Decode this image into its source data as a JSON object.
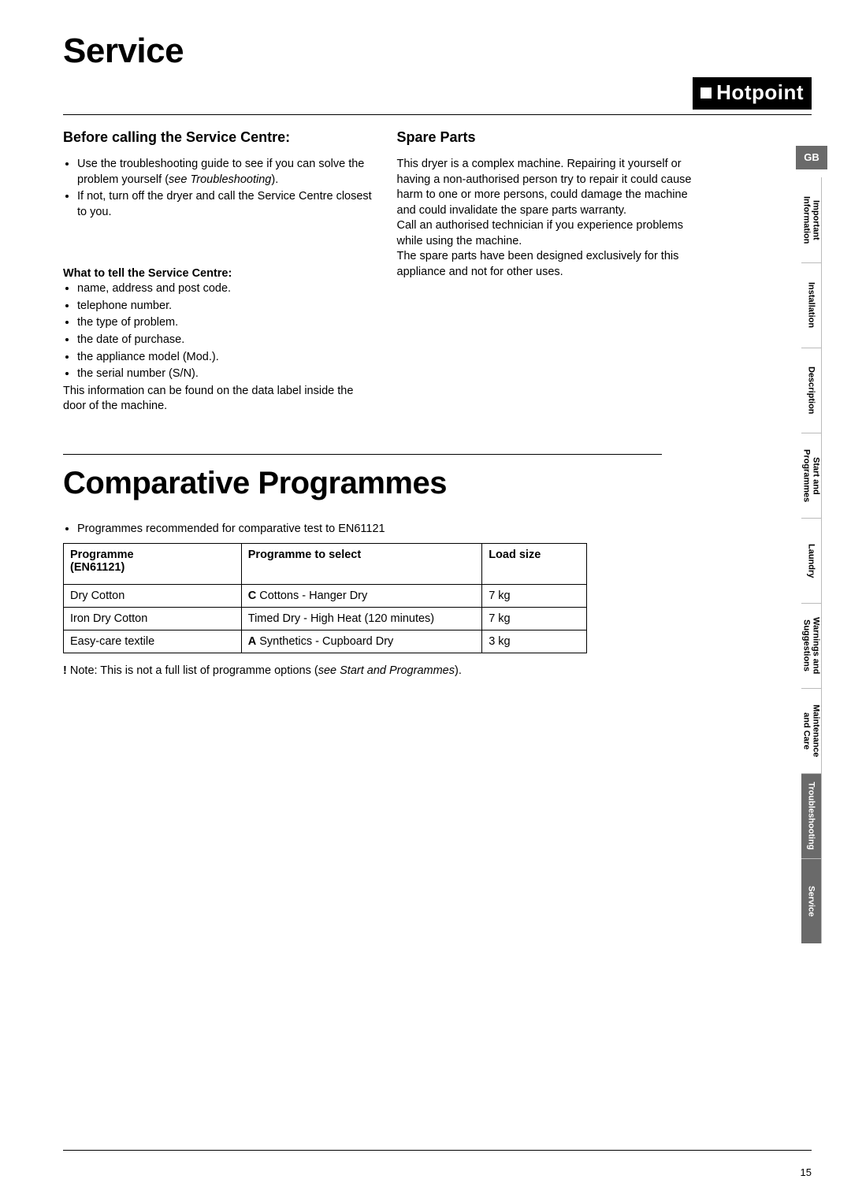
{
  "page": {
    "title_main": "Service",
    "brand": "Hotpoint",
    "title_secondary": "Comparative Programmes",
    "page_number": "15"
  },
  "tabs": {
    "gb": "GB",
    "items": [
      "Important\nInformation",
      "Installation",
      "Description",
      "Start and\nProgrammes",
      "Laundry",
      "Warnings and\nSuggestions",
      "Maintenance\nand Care",
      "Troubleshooting",
      "Service"
    ],
    "dark_indices": [
      7,
      8
    ]
  },
  "left_col": {
    "heading": "Before calling the Service Centre:",
    "bullets_top": [
      {
        "pre": "Use the troubleshooting guide to see if you can solve the problem yourself (",
        "em": "see Troubleshooting",
        "post": ")."
      },
      {
        "pre": "If not, turn off the dryer and call the Service Centre closest to you.",
        "em": "",
        "post": ""
      }
    ],
    "what_heading": "What to tell the Service Centre:",
    "bullets_bottom": [
      "name, address and post code.",
      "telephone number.",
      "the type of problem.",
      "the date of purchase.",
      "the appliance model (Mod.).",
      "the serial number (S/N)."
    ],
    "after_bullets": "This information can be found on the data label inside the door of the machine."
  },
  "right_col": {
    "heading": "Spare Parts",
    "paragraph": "This dryer is a complex machine. Repairing it yourself or having a non-authorised person try to repair it could cause harm to one or more persons, could damage the machine and could invalidate the spare parts warranty.\nCall an authorised technician if you experience problems while using the machine.\nThe spare parts have been designed exclusively for this appliance and not for other uses."
  },
  "prog_section": {
    "intro_bullet": "Programmes recommended for comparative test to EN61121",
    "table": {
      "headers": [
        "Programme\n(EN61121)",
        "Programme to select",
        "Load size"
      ],
      "rows": [
        [
          "Dry Cotton",
          {
            "b": "C",
            "rest": " Cottons - Hanger Dry"
          },
          "7 kg"
        ],
        [
          "Iron Dry Cotton",
          {
            "b": "",
            "rest": "Timed Dry - High Heat (120 minutes)"
          },
          "7 kg"
        ],
        [
          "Easy-care textile",
          {
            "b": "A",
            "rest": " Synthetics - Cupboard Dry"
          },
          "3 kg"
        ]
      ]
    },
    "footnote_pre": "! Note: This is not a full list of programme options (",
    "footnote_em": "see Start and Programmes",
    "footnote_post": ")."
  },
  "style": {
    "tab_dark_bg": "#6a6a6a"
  }
}
